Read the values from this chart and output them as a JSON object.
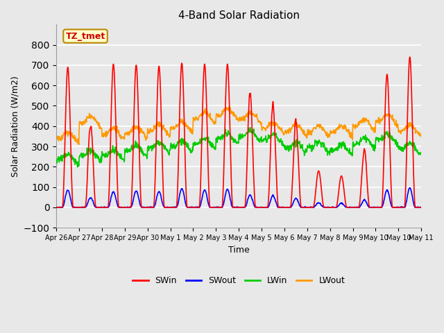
{
  "title": "4-Band Solar Radiation",
  "xlabel": "Time",
  "ylabel": "Solar Radiation (W/m2)",
  "ylim": [
    -100,
    900
  ],
  "yticks": [
    -100,
    0,
    100,
    200,
    300,
    400,
    500,
    600,
    700,
    800
  ],
  "annotation_text": "TZ_tmet",
  "annotation_color": "#cc0000",
  "annotation_bg": "#ffffcc",
  "annotation_border": "#bb8800",
  "bg_color": "#e8e8e8",
  "grid_color": "#ffffff",
  "SWin_color": "#ff0000",
  "SWout_color": "#0000ff",
  "LWin_color": "#00cc00",
  "LWout_color": "#ff9900",
  "line_width": 1.2,
  "x_tick_labels": [
    "Apr 26",
    "Apr 27",
    "Apr 28",
    "Apr 29",
    "Apr 30",
    "May 1",
    "May 2",
    "May 3",
    "May 4",
    "May 5",
    "May 6",
    "May 7",
    "May 8",
    "May 9",
    "May 10",
    "May 10",
    "May 11"
  ],
  "n_days": 16,
  "pts_per_day": 72
}
